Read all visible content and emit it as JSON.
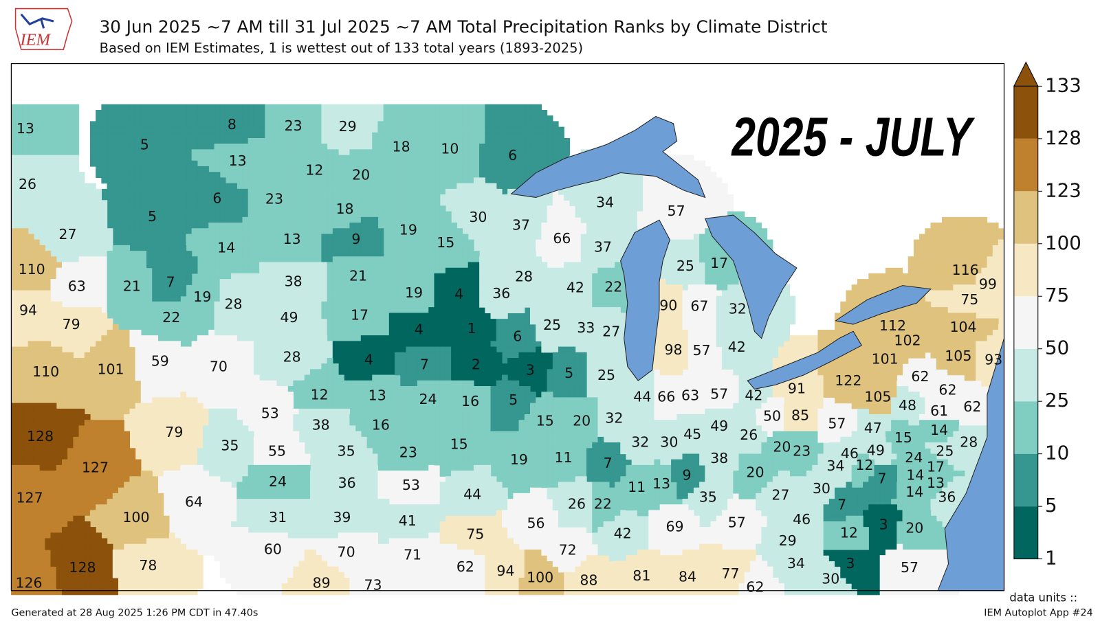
{
  "header": {
    "title": "30 Jun 2025 ~7 AM till 31 Jul 2025 ~7 AM Total Precipitation Ranks by Climate District",
    "subtitle": "Based on IEM Estimates, 1 is wettest out of 133 total years (1893-2025)",
    "logo": "IEM"
  },
  "stamp": "2025 - JULY",
  "colorbar": {
    "ticks": [
      1,
      5,
      10,
      25,
      50,
      75,
      100,
      123,
      128,
      133
    ],
    "colors": [
      "#01665e",
      "#35978f",
      "#80cdc1",
      "#c7eae5",
      "#f5f5f5",
      "#f6e8c3",
      "#dfc27d",
      "#bf812d",
      "#8c510a"
    ]
  },
  "map": {
    "ranks": [
      13,
      5,
      26,
      5,
      27,
      8,
      23,
      29,
      13,
      12,
      20,
      6,
      23,
      18,
      18,
      10,
      6,
      30,
      19,
      15,
      19,
      4,
      14,
      13,
      9,
      38,
      21,
      19,
      28,
      49,
      17,
      110,
      63,
      21,
      7,
      94,
      79,
      22,
      110,
      101,
      59,
      70,
      28,
      4,
      12,
      13,
      53,
      38,
      16,
      4,
      1,
      6,
      7,
      2,
      3,
      24,
      16,
      5,
      128,
      79,
      35,
      127,
      127,
      64,
      100,
      55,
      35,
      23,
      24,
      36,
      53,
      31,
      39,
      41,
      60,
      70,
      71,
      126,
      128,
      78,
      89,
      73,
      15,
      19,
      44,
      75,
      56,
      62,
      94,
      100,
      72,
      88,
      37,
      66,
      34,
      37,
      57,
      28,
      42,
      22,
      36,
      25,
      33,
      27,
      25,
      5,
      15,
      20,
      32,
      11,
      7,
      26,
      22,
      42,
      44,
      66,
      63,
      57,
      32,
      30,
      45,
      49,
      11,
      13,
      9,
      38,
      35,
      69,
      57,
      25,
      17,
      90,
      67,
      32,
      98,
      57,
      42,
      42,
      91,
      50,
      85,
      26,
      20,
      23,
      20,
      34,
      27,
      30,
      46,
      29,
      34,
      30,
      3,
      57,
      122,
      105,
      62,
      62,
      48,
      61,
      62,
      47,
      15,
      14,
      28,
      46,
      49,
      12,
      24,
      25,
      17,
      14,
      7,
      13,
      14,
      36,
      7,
      3,
      20,
      12,
      57,
      116,
      99,
      75,
      112,
      104,
      102,
      101,
      105,
      93,
      81,
      84,
      77,
      62
    ]
  },
  "footer": {
    "generated": "Generated at 28 Aug 2025 1:26 PM CDT in 47.40s",
    "units": "data units ::",
    "app": "IEM Autoplot App #24"
  }
}
